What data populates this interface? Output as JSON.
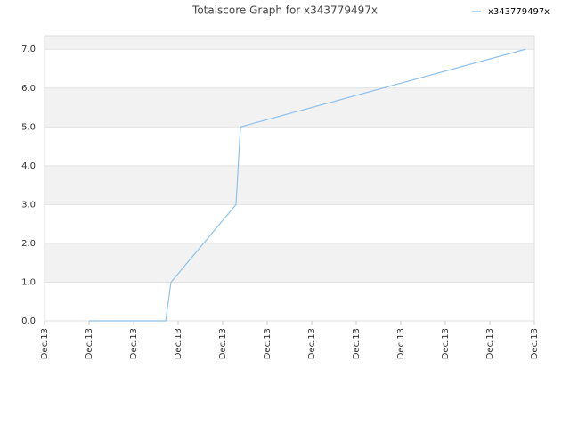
{
  "chart_data": {
    "type": "line",
    "title": "Totalscore Graph for x343779497x",
    "x": [
      1,
      2.72,
      2.84,
      4.3,
      4.4,
      10.8
    ],
    "series": [
      {
        "name": "x343779497x",
        "color": "#8fc1ee",
        "values": [
          0,
          0,
          1,
          3,
          5,
          7
        ]
      }
    ],
    "xlim": [
      0,
      11
    ],
    "xticks": [
      {
        "value": 0,
        "label": "Dec.13"
      },
      {
        "value": 1,
        "label": "Dec.13"
      },
      {
        "value": 2,
        "label": "Dec.13"
      },
      {
        "value": 3,
        "label": "Dec.13"
      },
      {
        "value": 4,
        "label": "Dec.13"
      },
      {
        "value": 5,
        "label": "Dec.13"
      },
      {
        "value": 6,
        "label": "Dec.13"
      },
      {
        "value": 7,
        "label": "Dec.13"
      },
      {
        "value": 8,
        "label": "Dec.13"
      },
      {
        "value": 9,
        "label": "Dec.13"
      },
      {
        "value": 10,
        "label": "Dec.13"
      },
      {
        "value": 11,
        "label": "Dec.13"
      }
    ],
    "ylim": [
      0,
      7.35
    ],
    "yticks": [
      {
        "value": 0,
        "label": "0.0"
      },
      {
        "value": 1,
        "label": "1.0"
      },
      {
        "value": 2,
        "label": "2.0"
      },
      {
        "value": 3,
        "label": "3.0"
      },
      {
        "value": 4,
        "label": "4.0"
      },
      {
        "value": 5,
        "label": "5.0"
      },
      {
        "value": 6,
        "label": "6.0"
      },
      {
        "value": 7,
        "label": "7.0"
      }
    ],
    "grid": true,
    "legend": "top-right"
  }
}
